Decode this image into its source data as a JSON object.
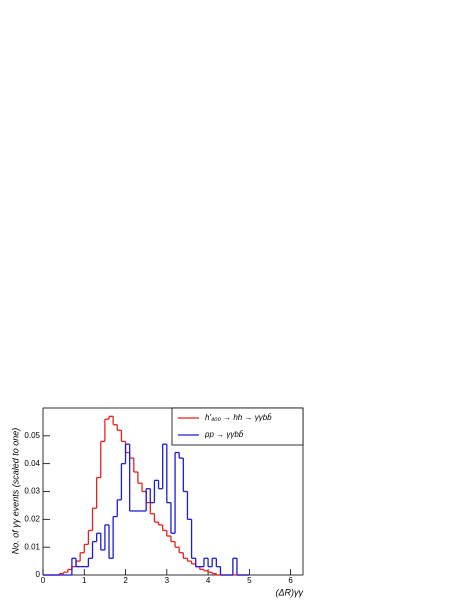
{
  "chart_data": {
    "type": "histogram",
    "xlabel": "(ΔR)γγ",
    "ylabel": "No.  of  γγ  events  (scaled  to  one)",
    "bins": [
      0,
      0.1,
      0.2,
      0.3,
      0.4,
      0.5,
      0.6,
      0.7,
      0.8,
      0.9,
      1.0,
      1.1,
      1.2,
      1.3,
      1.4,
      1.5,
      1.6,
      1.7,
      1.8,
      1.9,
      2.0,
      2.1,
      2.2,
      2.3,
      2.4,
      2.5,
      2.6,
      2.7,
      2.8,
      2.9,
      3.0,
      3.1,
      3.2,
      3.3,
      3.4,
      3.5,
      3.6,
      3.7,
      3.8,
      3.9,
      4.0,
      4.1,
      4.2,
      4.3,
      4.4,
      4.5,
      4.6,
      4.7,
      4.8,
      4.9,
      5.0
    ],
    "series": [
      {
        "name": "h′₄₀₀ → hh → γγbb̄",
        "color": "#e8201c",
        "values": [
          0,
          0,
          0,
          0,
          0.0005,
          0.001,
          0.002,
          0.003,
          0.005,
          0.008,
          0.011,
          0.016,
          0.024,
          0.035,
          0.048,
          0.056,
          0.057,
          0.054,
          0.052,
          0.048,
          0.044,
          0.042,
          0.037,
          0.033,
          0.03,
          0.026,
          0.022,
          0.019,
          0.018,
          0.016,
          0.014,
          0.012,
          0.01,
          0.008,
          0.006,
          0.005,
          0.004,
          0.003,
          0.002,
          0.0015,
          0.001,
          0.0005,
          0,
          0,
          0,
          0,
          0,
          0,
          0,
          0
        ]
      },
      {
        "name": "pp → γγbb̄",
        "color": "#1c1cd6",
        "values": [
          0,
          0,
          0,
          0,
          0,
          0,
          0,
          0.006,
          0.003,
          0.003,
          0.003,
          0.006,
          0.012,
          0.015,
          0.009,
          0.018,
          0.006,
          0.021,
          0.027,
          0.04,
          0.047,
          0.023,
          0.023,
          0.023,
          0.023,
          0.031,
          0.026,
          0.034,
          0.031,
          0.047,
          0.026,
          0.015,
          0.044,
          0.042,
          0.03,
          0.02,
          0.006,
          0.003,
          0.003,
          0.006,
          0.003,
          0.006,
          0.003,
          0,
          0,
          0,
          0.006,
          0,
          0,
          0
        ]
      }
    ],
    "xlim": [
      0,
      6.3
    ],
    "ylim": [
      0,
      0.06
    ],
    "xticks": [
      0,
      1,
      2,
      3,
      4,
      5,
      6
    ],
    "yticks": [
      0,
      0.01,
      0.02,
      0.03,
      0.04,
      0.05
    ],
    "legend": "top-right"
  }
}
